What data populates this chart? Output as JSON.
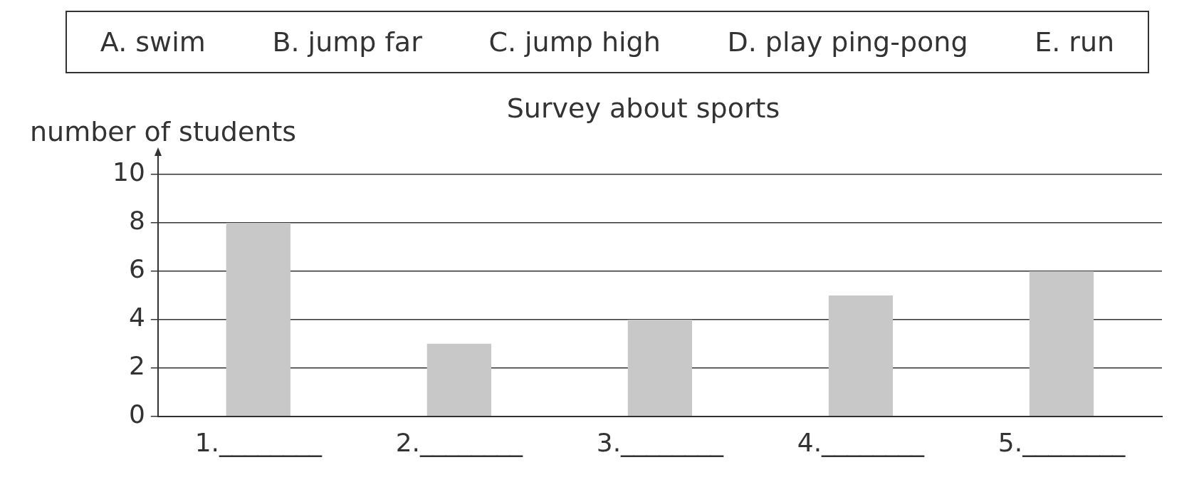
{
  "chart_data": {
    "type": "bar",
    "title": "Survey about sports",
    "ylabel": "number of students",
    "annotations": [
      "A. swim",
      "B. jump far",
      "C. jump high",
      "D. play ping-pong",
      "E. run"
    ],
    "categories": [
      "1.________",
      "2.________",
      "3.________",
      "4.________",
      "5.________"
    ],
    "values": [
      8,
      3,
      4,
      5,
      6
    ],
    "color": "#c8c8c8",
    "ylim": [
      0,
      10
    ],
    "yticks": [
      0,
      2,
      4,
      6,
      8,
      10
    ],
    "grid": "y"
  }
}
